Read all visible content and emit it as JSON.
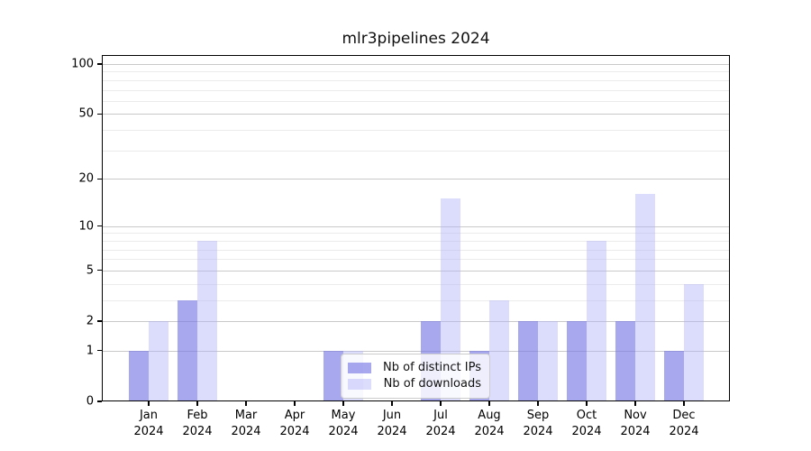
{
  "figure": {
    "title": "mlr3pipelines 2024"
  },
  "chart_data": {
    "type": "bar",
    "title": "mlr3pipelines 2024",
    "categories": [
      "Jan 2024",
      "Feb 2024",
      "Mar 2024",
      "Apr 2024",
      "May 2024",
      "Jun 2024",
      "Jul 2024",
      "Aug 2024",
      "Sep 2024",
      "Oct 2024",
      "Nov 2024",
      "Dec 2024"
    ],
    "series": [
      {
        "name": "Nb of distinct IPs",
        "color": "#a8a8ef",
        "fill": "rgba(121,121,230,0.65)",
        "values": [
          1,
          3,
          0,
          0,
          1,
          0,
          2,
          1,
          2,
          2,
          2,
          1
        ]
      },
      {
        "name": "Nb of downloads",
        "color": "#dcdcf8",
        "fill": "rgba(177,177,250,0.45)",
        "values": [
          2,
          8,
          0,
          0,
          1,
          0,
          15,
          3,
          2,
          8,
          16,
          4
        ]
      }
    ],
    "xlabel": "",
    "ylabel": "",
    "yscale": "log1p",
    "ylim": [
      0,
      113
    ],
    "yticks": [
      0,
      1,
      2,
      5,
      10,
      20,
      50,
      100
    ],
    "minor_gridlines": [
      3,
      4,
      6,
      7,
      8,
      9,
      30,
      40,
      60,
      70,
      80,
      90
    ],
    "grid": true,
    "legend_position": "lower-center-inside",
    "major_grid_color": "#c9c9c9",
    "minor_grid_color": "#ebebeb"
  }
}
